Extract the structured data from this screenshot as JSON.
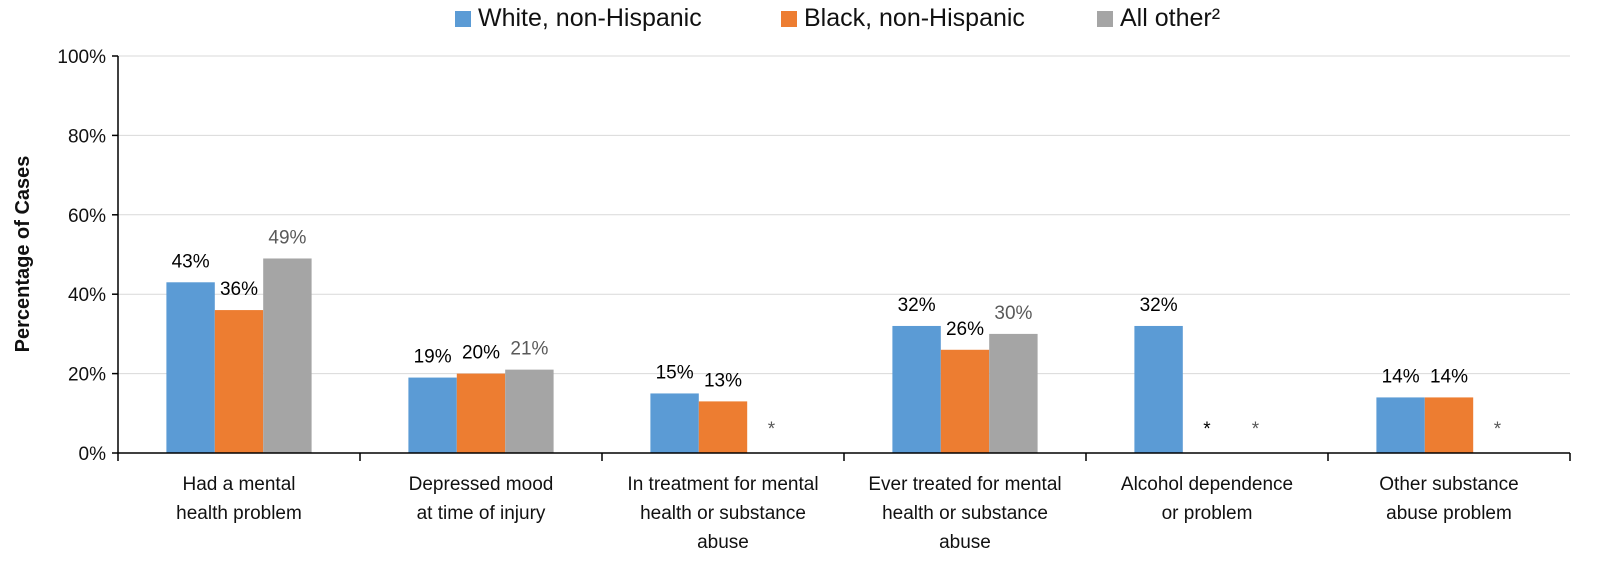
{
  "chart_data": {
    "type": "bar",
    "title": "",
    "xlabel": "",
    "ylabel": "Percentage of Cases",
    "ylim": [
      0,
      100
    ],
    "y_ticks": [
      "0%",
      "20%",
      "40%",
      "60%",
      "80%",
      "100%"
    ],
    "grid": true,
    "legend_position": "top",
    "categories": [
      [
        "Had a mental",
        "health problem"
      ],
      [
        "Depressed mood",
        "at time of injury"
      ],
      [
        "In treatment for mental",
        "health or substance",
        "abuse"
      ],
      [
        "Ever treated for mental",
        "health or substance",
        "abuse"
      ],
      [
        "Alcohol dependence",
        "or problem"
      ],
      [
        "Other substance",
        "abuse problem"
      ]
    ],
    "series": [
      {
        "name": "White, non-Hispanic",
        "color": "#5B9BD5",
        "label_color": "#000000",
        "values": [
          43,
          19,
          15,
          32,
          32,
          14
        ],
        "labels": [
          "43%",
          "19%",
          "15%",
          "32%",
          "32%",
          "14%"
        ]
      },
      {
        "name": "Black, non-Hispanic",
        "color": "#ED7D31",
        "label_color": "#000000",
        "values": [
          36,
          20,
          13,
          26,
          null,
          14
        ],
        "labels": [
          "36%",
          "20%",
          "13%",
          "26%",
          "*",
          "14%"
        ]
      },
      {
        "name": "All other²",
        "color": "#A5A5A5",
        "label_color": "#595959",
        "values": [
          49,
          21,
          null,
          30,
          null,
          null
        ],
        "labels": [
          "49%",
          "21%",
          "*",
          "30%",
          "*",
          "*"
        ]
      }
    ]
  }
}
